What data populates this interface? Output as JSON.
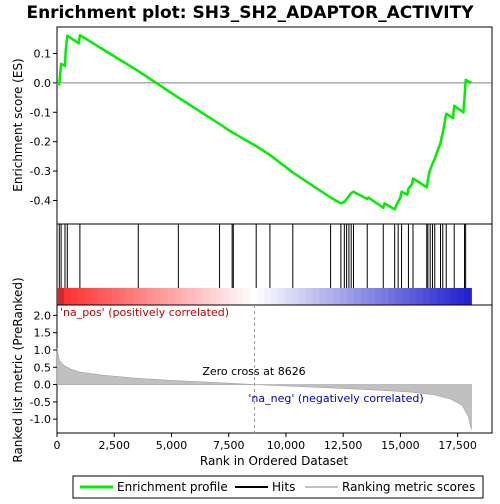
{
  "chart_data": {
    "type": "line",
    "title": "Enrichment plot: SH3_SH2_ADAPTOR_ACTIVITY",
    "x_axis": {
      "label": "Rank in Ordered Dataset",
      "range": [
        0,
        19000
      ],
      "ticks": [
        0,
        2500,
        5000,
        7500,
        10000,
        12500,
        15000,
        17500
      ],
      "tick_labels": [
        "0",
        "2,500",
        "5,000",
        "7,500",
        "10,000",
        "12,500",
        "15,000",
        "17,500"
      ]
    },
    "es_panel": {
      "ylabel": "Enrichment score (ES)",
      "ylim": [
        -0.48,
        0.19
      ],
      "ticks": [
        0.1,
        0.0,
        -0.1,
        -0.2,
        -0.3,
        -0.4
      ],
      "tick_labels": [
        "0.1",
        "0.0",
        "-0.1",
        "-0.2",
        "-0.3",
        "-0.4"
      ],
      "series": [
        {
          "name": "Enrichment profile",
          "color": "#00ee00",
          "points": [
            [
              0,
              0.0
            ],
            [
              100,
              -0.005
            ],
            [
              180,
              0.065
            ],
            [
              350,
              0.058
            ],
            [
              380,
              0.11
            ],
            [
              450,
              0.16
            ],
            [
              950,
              0.135
            ],
            [
              1000,
              0.162
            ],
            [
              3550,
              0.04
            ],
            [
              5300,
              -0.05
            ],
            [
              7100,
              -0.14
            ],
            [
              7650,
              -0.168
            ],
            [
              7700,
              -0.17
            ],
            [
              8700,
              -0.215
            ],
            [
              9300,
              -0.245
            ],
            [
              10300,
              -0.305
            ],
            [
              11950,
              -0.39
            ],
            [
              12400,
              -0.41
            ],
            [
              12550,
              -0.405
            ],
            [
              12650,
              -0.395
            ],
            [
              12750,
              -0.385
            ],
            [
              12850,
              -0.375
            ],
            [
              12950,
              -0.37
            ],
            [
              13550,
              -0.395
            ],
            [
              13600,
              -0.39
            ],
            [
              14250,
              -0.425
            ],
            [
              14300,
              -0.41
            ],
            [
              14750,
              -0.43
            ],
            [
              14800,
              -0.42
            ],
            [
              14900,
              -0.405
            ],
            [
              15000,
              -0.39
            ],
            [
              15050,
              -0.37
            ],
            [
              15300,
              -0.38
            ],
            [
              15350,
              -0.36
            ],
            [
              15500,
              -0.345
            ],
            [
              15550,
              -0.325
            ],
            [
              16150,
              -0.355
            ],
            [
              16200,
              -0.33
            ],
            [
              16250,
              -0.31
            ],
            [
              16300,
              -0.295
            ],
            [
              16400,
              -0.275
            ],
            [
              16500,
              -0.258
            ],
            [
              16600,
              -0.235
            ],
            [
              16750,
              -0.205
            ],
            [
              16800,
              -0.185
            ],
            [
              16850,
              -0.17
            ],
            [
              17000,
              -0.105
            ],
            [
              17300,
              -0.12
            ],
            [
              17350,
              -0.078
            ],
            [
              17750,
              -0.1
            ],
            [
              17800,
              -0.05
            ],
            [
              17850,
              0.01
            ],
            [
              18100,
              0.0
            ]
          ]
        }
      ]
    },
    "hits": [
      100,
      180,
      350,
      450,
      1000,
      3550,
      5300,
      7100,
      7650,
      7700,
      8700,
      9300,
      10300,
      11950,
      12400,
      12550,
      12650,
      12750,
      12850,
      12950,
      13550,
      14250,
      14750,
      14900,
      15050,
      15350,
      15550,
      16150,
      16200,
      16300,
      16400,
      16500,
      16750,
      16850,
      17000,
      17350,
      17800,
      17850
    ],
    "hits_legend": "Hits",
    "rank_metric_panel": {
      "ylabel": "Ranked list metric (PreRanked)",
      "ylim": [
        -1.4,
        2.3
      ],
      "ticks": [
        2.0,
        1.5,
        1.0,
        0.5,
        0.0,
        -0.5,
        -1.0
      ],
      "tick_labels": [
        "2.0",
        "1.5",
        "1.0",
        "0.5",
        "0.0",
        "-0.5",
        "-1.0"
      ],
      "legend_name": "Ranking metric scores",
      "n_ranks": 18100,
      "profile": [
        [
          0,
          1.05
        ],
        [
          100,
          0.7
        ],
        [
          300,
          0.55
        ],
        [
          600,
          0.45
        ],
        [
          1000,
          0.36
        ],
        [
          2000,
          0.27
        ],
        [
          3500,
          0.18
        ],
        [
          5000,
          0.12
        ],
        [
          6500,
          0.07
        ],
        [
          7500,
          0.04
        ],
        [
          8626,
          0.0
        ],
        [
          10000,
          -0.04
        ],
        [
          12000,
          -0.1
        ],
        [
          14000,
          -0.16
        ],
        [
          15500,
          -0.22
        ],
        [
          16500,
          -0.3
        ],
        [
          17200,
          -0.42
        ],
        [
          17700,
          -0.6
        ],
        [
          17950,
          -0.9
        ],
        [
          18100,
          -1.3
        ]
      ],
      "zero_cross_label": "Zero cross at 8626",
      "zero_cross_rank": 8626,
      "pos_label": "'na_pos' (positively correlated)",
      "neg_label": "'na_neg' (negatively correlated)"
    },
    "legend": [
      "Enrichment profile",
      "Hits",
      "Ranking metric scores"
    ],
    "colors": {
      "enrichment_line": "#00ee00",
      "zero_line": "#808080",
      "metric_fill": "#c0c0c0",
      "pos_text": "#cc0000",
      "neg_text": "#0000cc"
    }
  }
}
